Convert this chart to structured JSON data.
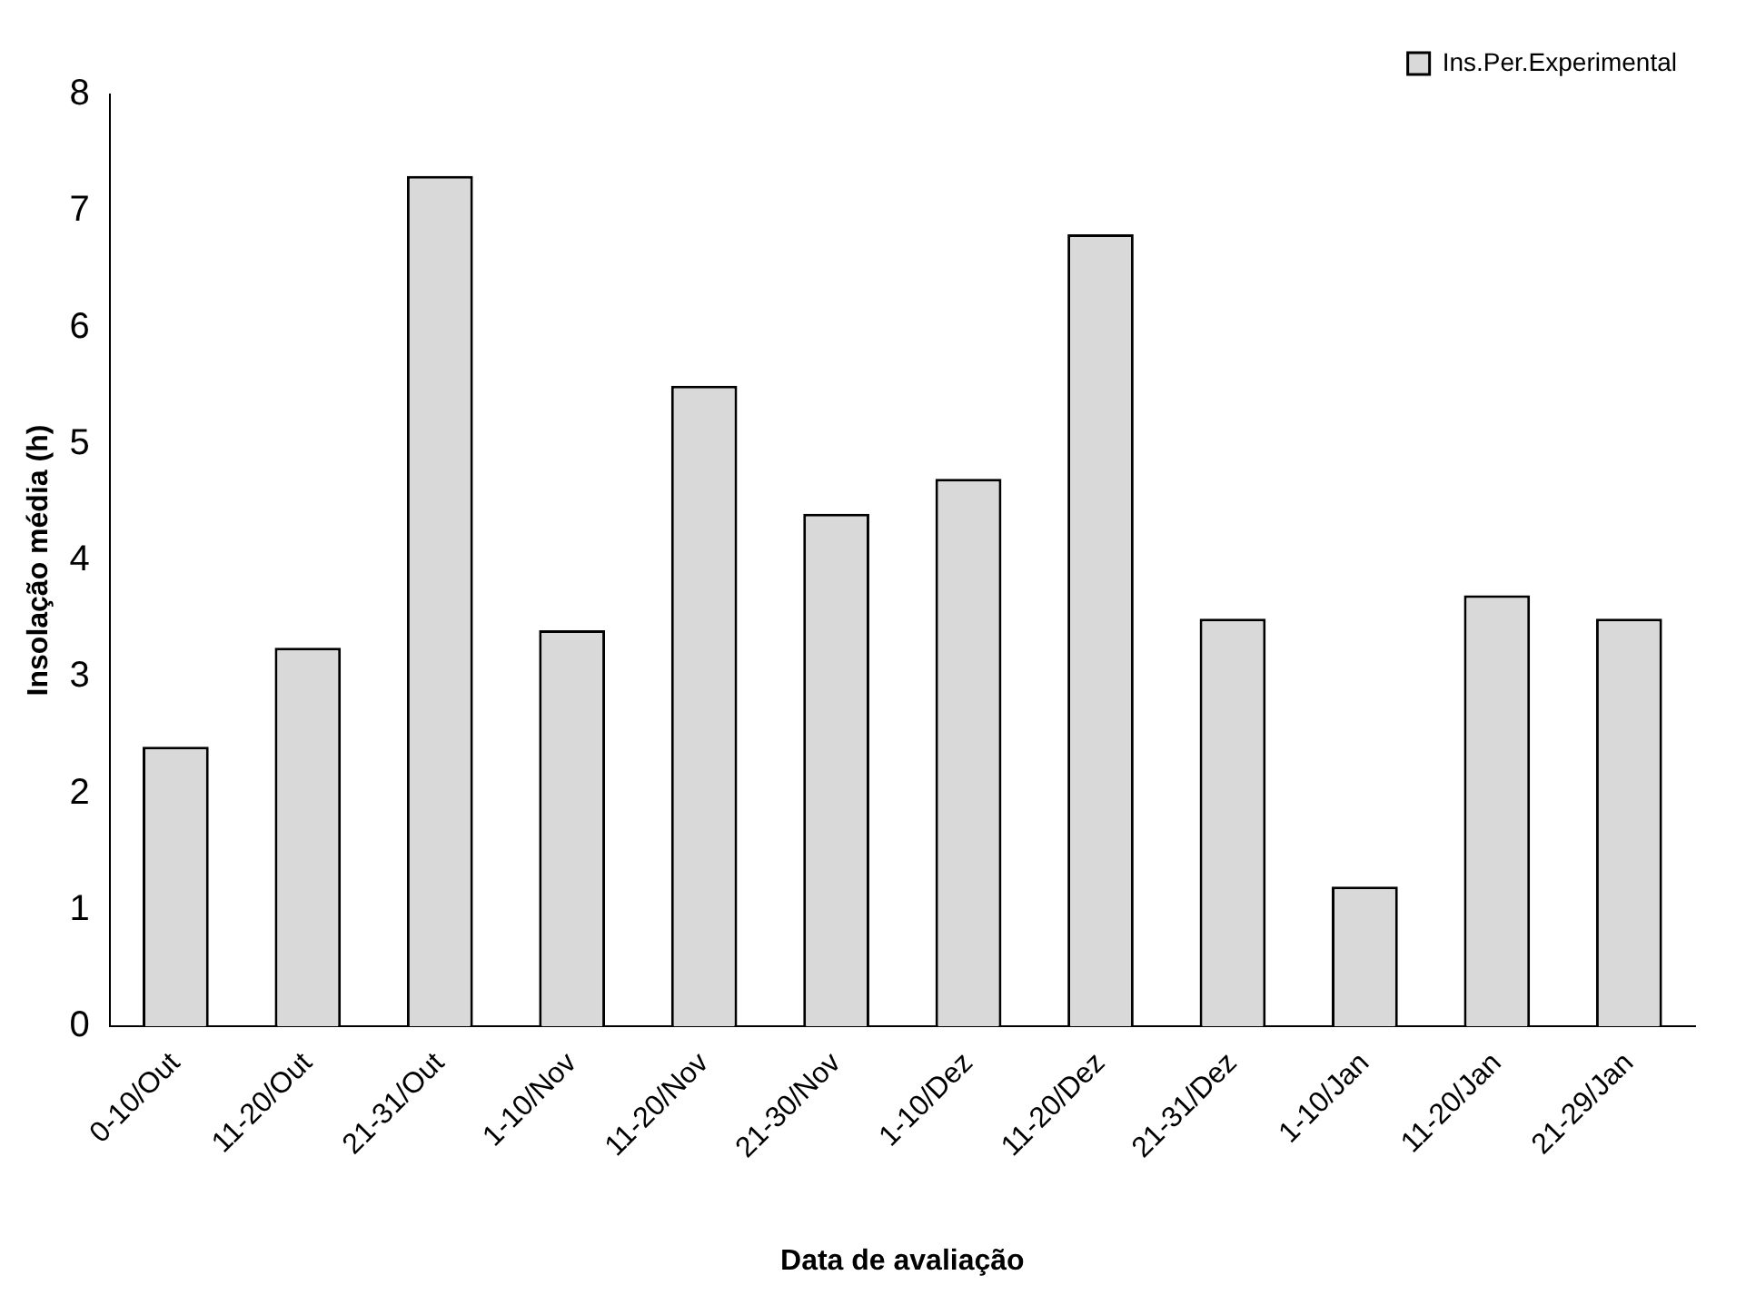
{
  "chart_data": {
    "type": "bar",
    "xlabel": "Data de avaliação",
    "ylabel": "Insolação média (h)",
    "categories": [
      "0-10/Out",
      "11-20/Out",
      "21-31/Out",
      "1-10/Nov",
      "11-20/Nov",
      "21-30/Nov",
      "1-10/Dez",
      "11-20/Dez",
      "21-31/Dez",
      "1-10/Jan",
      "11-20/Jan",
      "21-29/Jan"
    ],
    "series": [
      {
        "name": "Ins.Per.Experimental",
        "color": "#d9d9d9",
        "values": [
          2.4,
          3.25,
          7.3,
          3.4,
          5.5,
          4.4,
          4.7,
          6.8,
          3.5,
          1.2,
          3.7,
          3.5
        ]
      }
    ],
    "ylim": [
      0,
      8
    ],
    "yticks": [
      0,
      1,
      2,
      3,
      4,
      5,
      6,
      7,
      8
    ],
    "grid": false,
    "legend": "top right"
  }
}
